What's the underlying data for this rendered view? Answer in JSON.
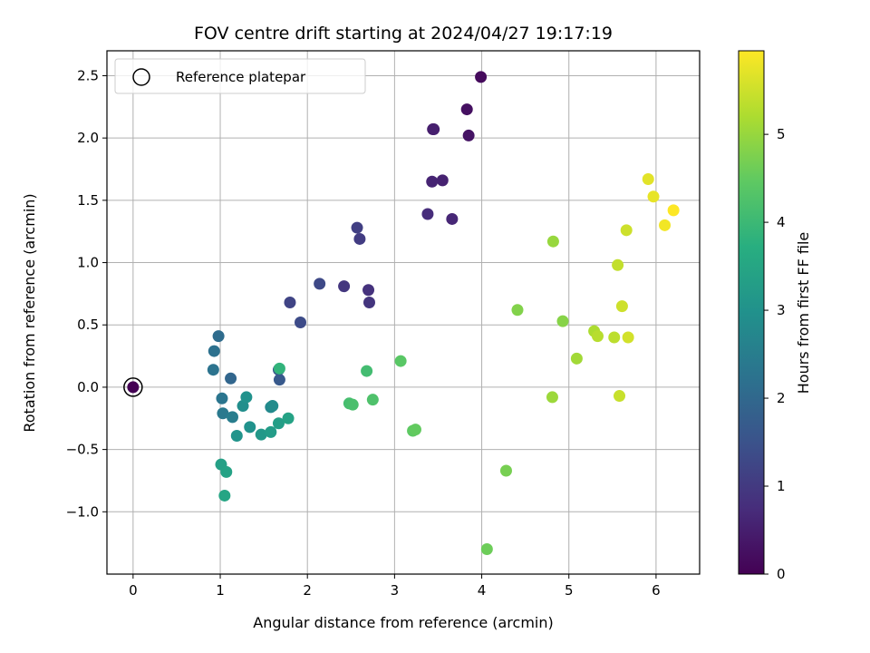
{
  "chart_data": {
    "type": "scatter",
    "title": "FOV centre drift starting at 2024/04/27 19:17:19",
    "xlabel": "Angular distance from reference (arcmin)",
    "ylabel": "Rotation from reference (arcmin)",
    "xlim": [
      -0.3,
      6.5
    ],
    "ylim": [
      -1.5,
      2.7
    ],
    "xticks": [
      0,
      1,
      2,
      3,
      4,
      5,
      6
    ],
    "yticks": [
      -1.0,
      -0.5,
      0.0,
      0.5,
      1.0,
      1.5,
      2.0,
      2.5
    ],
    "xtick_labels": [
      "0",
      "1",
      "2",
      "3",
      "4",
      "5",
      "6"
    ],
    "ytick_labels": [
      "−1.0",
      "−0.5",
      "0.0",
      "0.5",
      "1.0",
      "1.5",
      "2.0",
      "2.5"
    ],
    "grid": true,
    "legend": {
      "placement": "top-left",
      "entries": [
        "Reference platepar"
      ]
    },
    "reference_point": {
      "x": 0.0,
      "y": 0.0,
      "hours": 0.0
    },
    "colorbar": {
      "label": "Hours from first FF file",
      "colormap": "viridis",
      "range": [
        0,
        5.95
      ],
      "ticks": [
        0,
        1,
        2,
        3,
        4,
        5
      ],
      "tick_labels": [
        "0",
        "1",
        "2",
        "3",
        "4",
        "5"
      ]
    },
    "points": [
      {
        "x": 0.0,
        "y": 0.0,
        "hours": 0.0
      },
      {
        "x": 3.99,
        "y": 2.49,
        "hours": 0.15
      },
      {
        "x": 3.83,
        "y": 2.23,
        "hours": 0.25
      },
      {
        "x": 3.85,
        "y": 2.02,
        "hours": 0.3
      },
      {
        "x": 3.44,
        "y": 2.07,
        "hours": 0.45
      },
      {
        "x": 3.45,
        "y": 2.07,
        "hours": 0.5
      },
      {
        "x": 3.55,
        "y": 1.66,
        "hours": 0.55
      },
      {
        "x": 3.43,
        "y": 1.65,
        "hours": 0.6
      },
      {
        "x": 3.66,
        "y": 1.35,
        "hours": 0.65
      },
      {
        "x": 3.38,
        "y": 1.39,
        "hours": 0.75
      },
      {
        "x": 2.7,
        "y": 0.78,
        "hours": 0.85
      },
      {
        "x": 2.71,
        "y": 0.68,
        "hours": 0.9
      },
      {
        "x": 2.42,
        "y": 0.81,
        "hours": 0.95
      },
      {
        "x": 2.6,
        "y": 1.19,
        "hours": 1.05
      },
      {
        "x": 2.57,
        "y": 1.28,
        "hours": 1.1
      },
      {
        "x": 1.8,
        "y": 0.68,
        "hours": 1.2
      },
      {
        "x": 2.14,
        "y": 0.83,
        "hours": 1.3
      },
      {
        "x": 1.92,
        "y": 0.52,
        "hours": 1.35
      },
      {
        "x": 1.67,
        "y": 0.14,
        "hours": 1.6
      },
      {
        "x": 1.68,
        "y": 0.06,
        "hours": 1.65
      },
      {
        "x": 1.12,
        "y": 0.07,
        "hours": 1.95
      },
      {
        "x": 0.98,
        "y": 0.41,
        "hours": 2.1
      },
      {
        "x": 0.93,
        "y": 0.29,
        "hours": 2.2
      },
      {
        "x": 0.92,
        "y": 0.14,
        "hours": 2.25
      },
      {
        "x": 1.02,
        "y": -0.09,
        "hours": 2.3
      },
      {
        "x": 1.03,
        "y": -0.21,
        "hours": 2.4
      },
      {
        "x": 1.14,
        "y": -0.24,
        "hours": 2.5
      },
      {
        "x": 1.58,
        "y": -0.16,
        "hours": 2.75
      },
      {
        "x": 1.6,
        "y": -0.15,
        "hours": 2.85
      },
      {
        "x": 1.26,
        "y": -0.15,
        "hours": 2.9
      },
      {
        "x": 1.3,
        "y": -0.08,
        "hours": 3.0
      },
      {
        "x": 1.34,
        "y": -0.32,
        "hours": 3.0
      },
      {
        "x": 1.19,
        "y": -0.39,
        "hours": 3.05
      },
      {
        "x": 1.47,
        "y": -0.38,
        "hours": 3.15
      },
      {
        "x": 1.58,
        "y": -0.36,
        "hours": 3.25
      },
      {
        "x": 1.67,
        "y": -0.29,
        "hours": 3.3
      },
      {
        "x": 1.78,
        "y": -0.25,
        "hours": 3.4
      },
      {
        "x": 1.01,
        "y": -0.62,
        "hours": 3.35
      },
      {
        "x": 1.07,
        "y": -0.68,
        "hours": 3.4
      },
      {
        "x": 1.05,
        "y": -0.87,
        "hours": 3.5
      },
      {
        "x": 1.68,
        "y": 0.15,
        "hours": 3.85
      },
      {
        "x": 2.68,
        "y": 0.13,
        "hours": 4.1
      },
      {
        "x": 2.48,
        "y": -0.13,
        "hours": 4.15
      },
      {
        "x": 2.52,
        "y": -0.14,
        "hours": 4.2
      },
      {
        "x": 2.75,
        "y": -0.1,
        "hours": 4.25
      },
      {
        "x": 3.07,
        "y": 0.21,
        "hours": 4.4
      },
      {
        "x": 3.21,
        "y": -0.35,
        "hours": 4.45
      },
      {
        "x": 3.24,
        "y": -0.34,
        "hours": 4.5
      },
      {
        "x": 4.06,
        "y": -1.3,
        "hours": 4.6
      },
      {
        "x": 4.28,
        "y": -0.67,
        "hours": 4.7
      },
      {
        "x": 4.41,
        "y": 0.62,
        "hours": 4.8
      },
      {
        "x": 4.93,
        "y": 0.53,
        "hours": 4.85
      },
      {
        "x": 4.82,
        "y": 1.17,
        "hours": 5.0
      },
      {
        "x": 4.81,
        "y": -0.08,
        "hours": 5.05
      },
      {
        "x": 5.09,
        "y": 0.23,
        "hours": 5.1
      },
      {
        "x": 5.29,
        "y": 0.45,
        "hours": 5.2
      },
      {
        "x": 5.33,
        "y": 0.41,
        "hours": 5.3
      },
      {
        "x": 5.52,
        "y": 0.4,
        "hours": 5.35
      },
      {
        "x": 5.56,
        "y": 0.98,
        "hours": 5.4
      },
      {
        "x": 5.58,
        "y": -0.07,
        "hours": 5.45
      },
      {
        "x": 5.61,
        "y": 0.65,
        "hours": 5.5
      },
      {
        "x": 5.66,
        "y": 1.26,
        "hours": 5.5
      },
      {
        "x": 5.68,
        "y": 0.4,
        "hours": 5.55
      },
      {
        "x": 5.91,
        "y": 1.67,
        "hours": 5.7
      },
      {
        "x": 5.97,
        "y": 1.53,
        "hours": 5.75
      },
      {
        "x": 6.1,
        "y": 1.3,
        "hours": 5.85
      },
      {
        "x": 6.2,
        "y": 1.42,
        "hours": 5.95
      }
    ]
  }
}
